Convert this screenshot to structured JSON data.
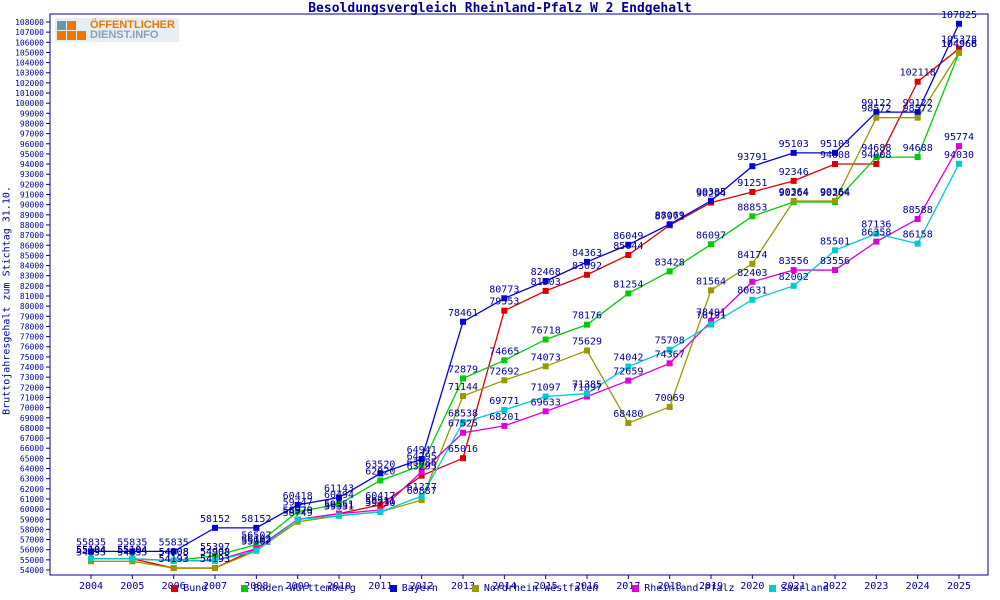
{
  "logo": {
    "line1": "ÖFFENTLICHER",
    "line2": "DIENST.INFO"
  },
  "colors": {
    "axis": "#000099",
    "point_label": "#000099",
    "background": "#ffffff"
  },
  "chart_data": {
    "type": "line",
    "title": "Besoldungsvergleich Rheinland-Pfalz W 2 Endgehalt",
    "ylabel": "Bruttojahresgehalt zum Stichtag 31.10.",
    "xlabel": "",
    "ylim": [
      54000,
      108000
    ],
    "ytick_step": 1000,
    "grid": false,
    "legend_position": "bottom",
    "point_labels": true,
    "x": [
      2004,
      2005,
      2006,
      2007,
      2008,
      2009,
      2010,
      2011,
      2012,
      2013,
      2014,
      2015,
      2016,
      2017,
      2018,
      2019,
      2020,
      2021,
      2022,
      2023,
      2024,
      2025
    ],
    "series": [
      {
        "name": "Bund",
        "color": "#dd0000",
        "values": [
          55104,
          55104,
          54193,
          54193,
          56102,
          58979,
          59551,
          60417,
          63295,
          65016,
          79553,
          81503,
          83092,
          85044,
          87971,
          90204,
          91251,
          92346,
          94008,
          94008,
          102118,
          105378
        ]
      },
      {
        "name": "Baden-Württemberg",
        "color": "#00cc00",
        "values": [
          55104,
          55104,
          54908,
          55397,
          56507,
          59747,
          60494,
          62820,
          64295,
          72879,
          74665,
          76718,
          78176,
          81254,
          83428,
          86097,
          88853,
          90264,
          90264,
          94688,
          94688,
          104966
        ]
      },
      {
        "name": "Bayern",
        "color": "#0000dd",
        "values": [
          55835,
          55835,
          55835,
          58152,
          58152,
          60418,
          61143,
          63520,
          64941,
          78461,
          80773,
          82468,
          84363,
          86049,
          88069,
          90385,
          93791,
          95103,
          95103,
          99122,
          99122,
          107825
        ]
      },
      {
        "name": "Nordrhein-Westfalen",
        "color": "#999900",
        "values": [
          54855,
          54855,
          54193,
          54193,
          55902,
          58749,
          59351,
          59730,
          60887,
          71144,
          72692,
          74073,
          75629,
          68480,
          70069,
          81564,
          84174,
          90364,
          90364,
          98572,
          98572,
          104968
        ]
      },
      {
        "name": "Rheinland-Pfalz",
        "color": "#dd00dd",
        "values": [
          55104,
          55104,
          54908,
          54908,
          56102,
          58979,
          59551,
          59911,
          63685,
          67525,
          68201,
          69633,
          71097,
          72659,
          74367,
          78491,
          82403,
          83556,
          83556,
          86358,
          88588,
          95774
        ]
      },
      {
        "name": "Saarland",
        "color": "#00cccc",
        "values": [
          55104,
          55104,
          54908,
          54908,
          55902,
          58979,
          59351,
          59730,
          61277,
          68538,
          69771,
          71097,
          71385,
          74042,
          75708,
          78191,
          80631,
          82002,
          85501,
          87136,
          86158,
          94030
        ]
      }
    ]
  }
}
